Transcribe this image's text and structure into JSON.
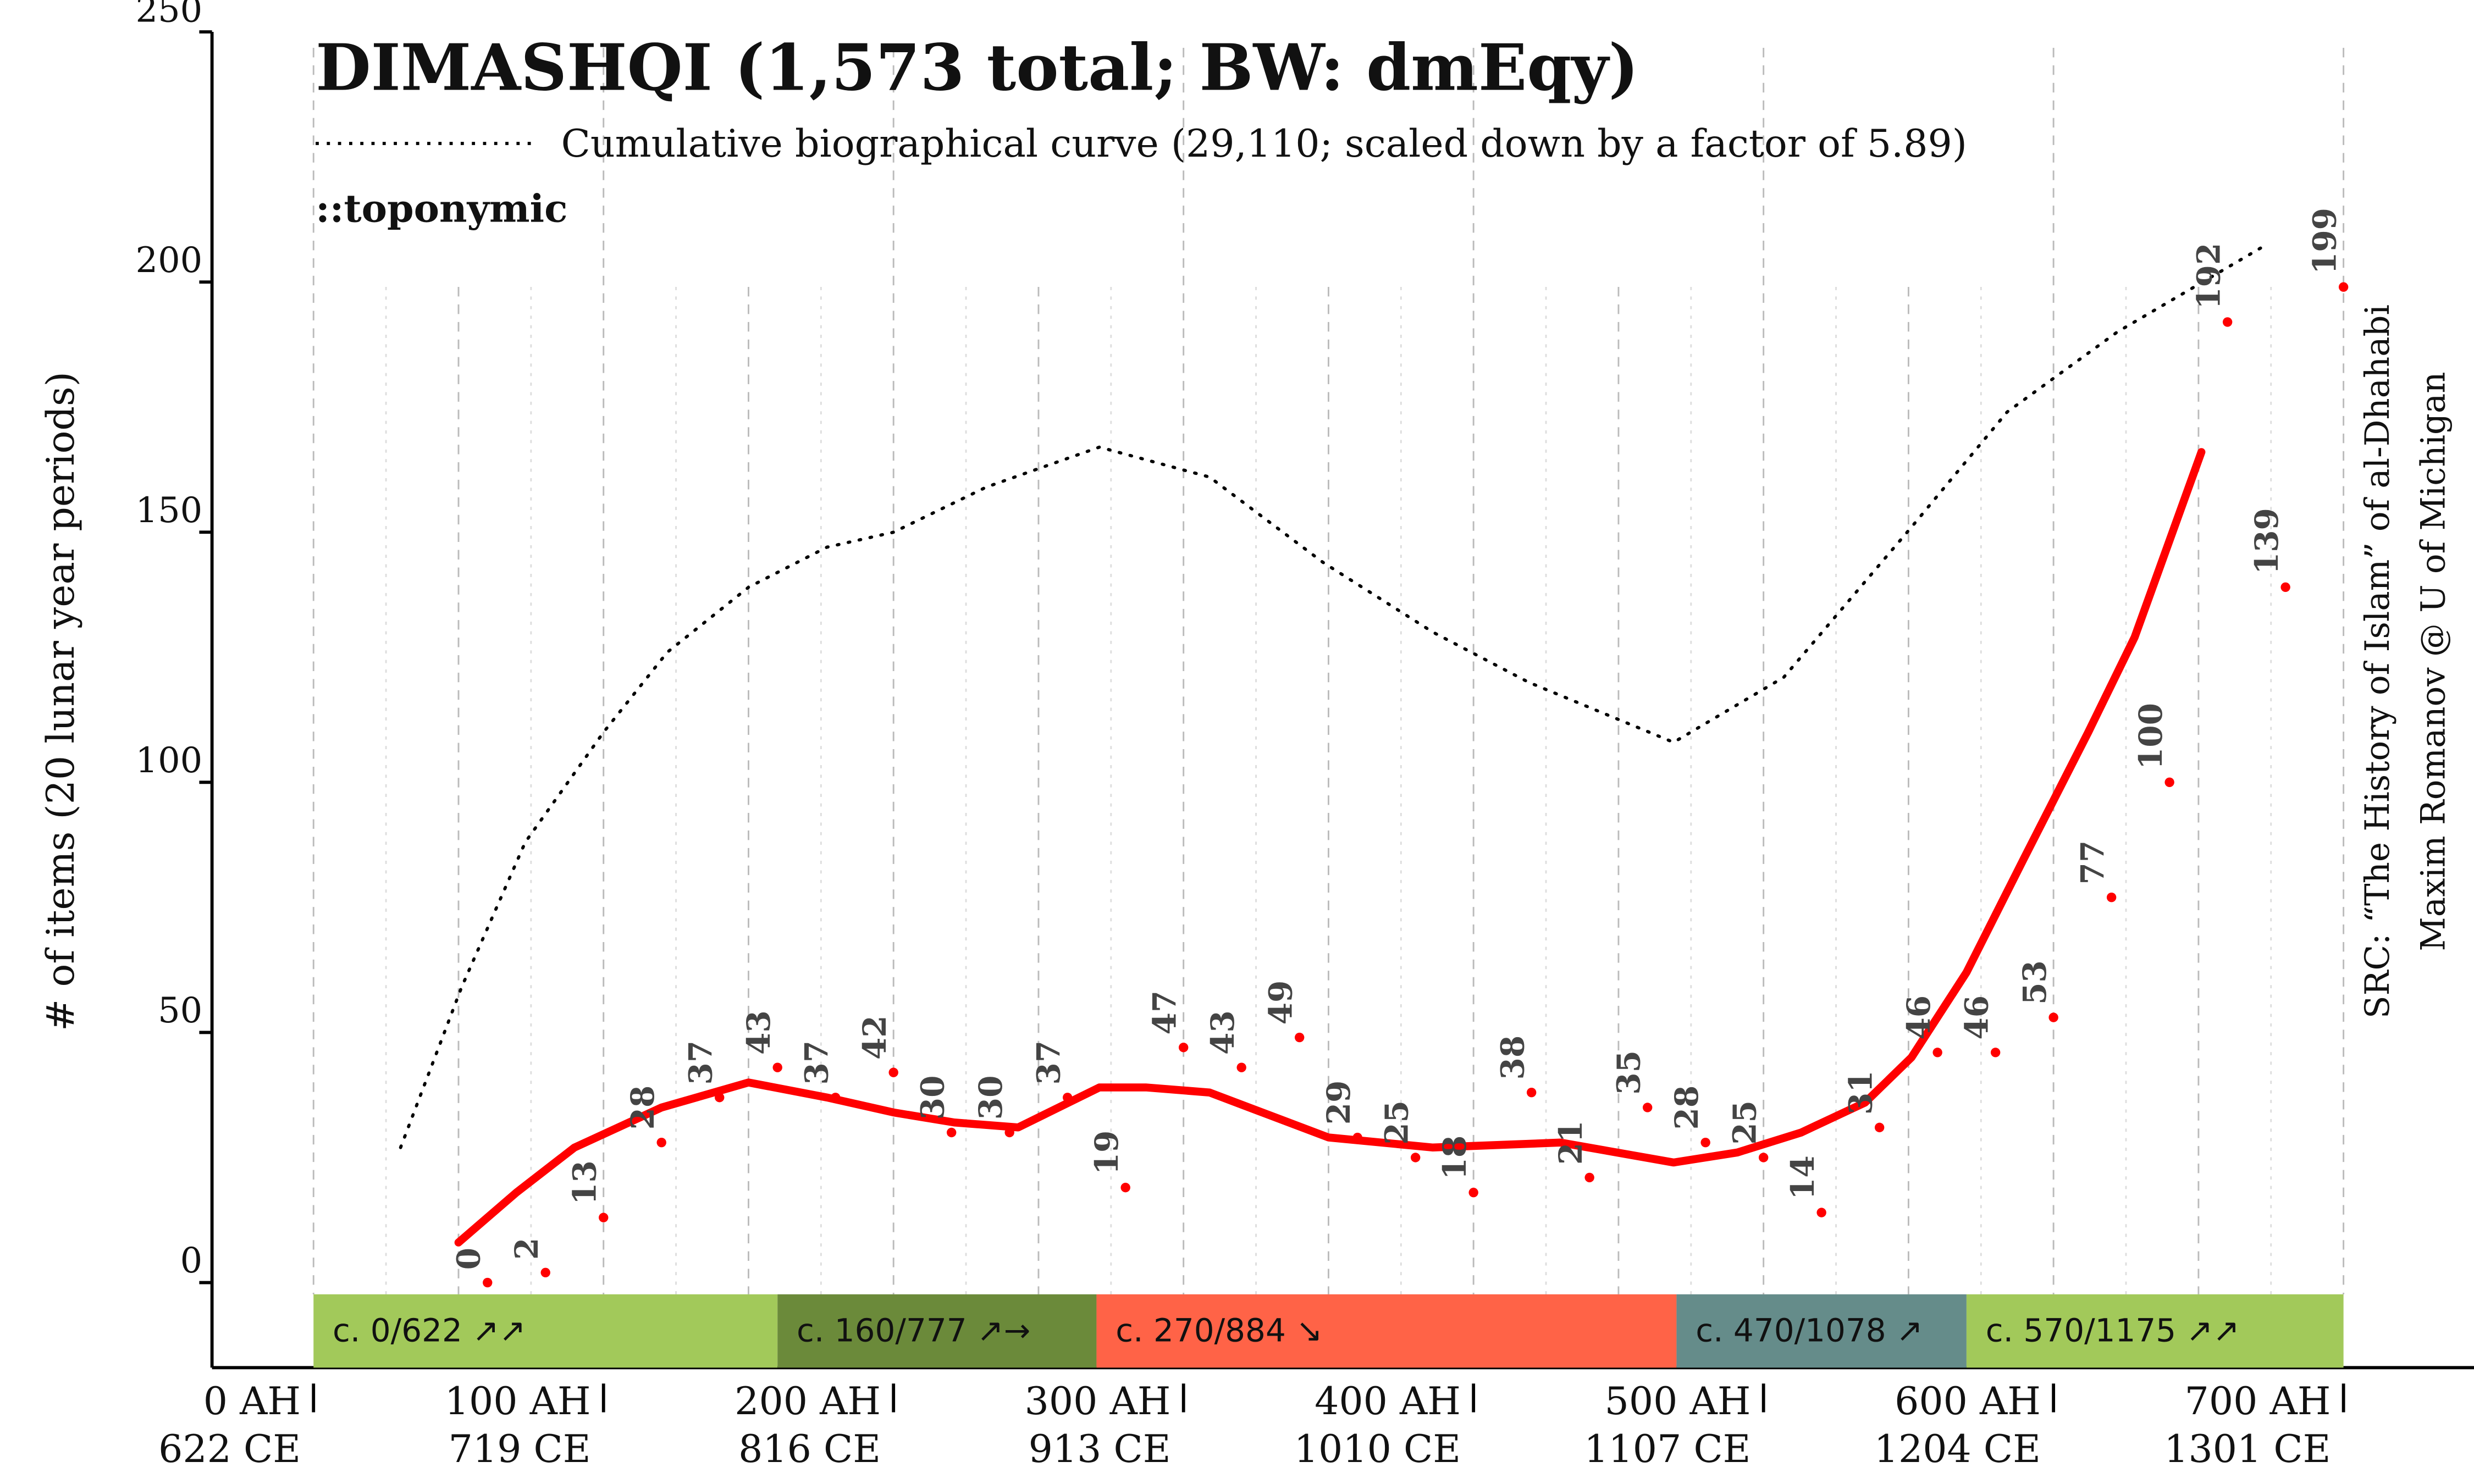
{
  "chart_data": {
    "type": "line",
    "title": "DIMASHQI (1,573 total; BW: dmEqy)",
    "subtitle": "::toponymic",
    "y_label": "# of items (20 lunar year periods)",
    "source": "SRC: “The History of Islam” of al-Dhahabi",
    "author": "Maxim Romanov @ U of Michigan",
    "xlim": [
      -35,
      745
    ],
    "ylim": [
      -17,
      250
    ],
    "yticks": [
      0,
      50,
      100,
      150,
      200,
      250
    ],
    "xticks": [
      {
        "value": 0,
        "label": "0 AH"
      },
      {
        "value": 100,
        "label": "100 AH"
      },
      {
        "value": 200,
        "label": "200 AH"
      },
      {
        "value": 300,
        "label": "300 AH"
      },
      {
        "value": 400,
        "label": "400 AH"
      },
      {
        "value": 500,
        "label": "500 AH"
      },
      {
        "value": 600,
        "label": "600 AH"
      },
      {
        "value": 700,
        "label": "700 AH"
      }
    ],
    "xtick_sublabels": [
      "622 CE",
      "719 CE",
      "816 CE",
      "913 CE",
      "1010 CE",
      "1107 CE",
      "1204 CE",
      "1301 CE"
    ],
    "series": [
      {
        "mode": "dotted",
        "name": "Cumulative biographical curve (29,110; scaled down by a factor of 5.89)",
        "color": "#000000",
        "x": [
          30,
          51,
          73,
          100,
          122,
          150,
          177,
          200,
          232,
          271,
          309,
          348,
          386,
          419,
          469,
          507,
          551,
          584,
          622,
          672
        ],
        "values": [
          27,
          59,
          88,
          110,
          126,
          139,
          147,
          150,
          159,
          167,
          161,
          144,
          130,
          120,
          108,
          121,
          151,
          174,
          190,
          207
        ]
      },
      {
        "mode": "line",
        "color": "#ff0000",
        "x": [
          50,
          70,
          90,
          120,
          150,
          177,
          200,
          221,
          243,
          271,
          287,
          309,
          350,
          386,
          430,
          469,
          491,
          513,
          535,
          551,
          570,
          590,
          612,
          628,
          651
        ],
        "values": [
          8,
          18,
          27,
          35,
          40,
          37,
          34,
          32,
          31,
          39,
          39,
          38,
          29,
          27,
          28,
          24,
          26,
          30,
          36,
          45,
          62,
          85,
          110,
          129,
          166
        ]
      },
      {
        "mode": "markers",
        "color": "#ff0000",
        "x": [
          60,
          80,
          100,
          120,
          140,
          160,
          180,
          200,
          220,
          240,
          260,
          280,
          300,
          320,
          340,
          360,
          380,
          400,
          420,
          440,
          460,
          480,
          500,
          520,
          540,
          560,
          580,
          600,
          620,
          640,
          660,
          680,
          700
        ],
        "values": [
          0,
          2,
          13,
          28,
          37,
          43,
          37,
          42,
          30,
          30,
          37,
          19,
          47,
          43,
          49,
          29,
          25,
          18,
          38,
          21,
          35,
          28,
          25,
          14,
          31,
          46,
          46,
          53,
          77,
          100,
          192,
          139,
          199
        ]
      }
    ],
    "periods": [
      {
        "start": 0,
        "end": 160,
        "label": "c. 0/622 ↗↗",
        "color": "#a2c95a"
      },
      {
        "start": 160,
        "end": 270,
        "label": "c. 160/777 ↗→",
        "color": "#6b8a3a"
      },
      {
        "start": 270,
        "end": 470,
        "label": "c. 270/884 ↘",
        "color": "#ff6347"
      },
      {
        "start": 470,
        "end": 570,
        "label": "c. 470/1078 ↗",
        "color": "#658c8a"
      },
      {
        "start": 570,
        "end": 700,
        "label": "c. 570/1175 ↗↗",
        "color": "#a2c95a"
      }
    ]
  }
}
